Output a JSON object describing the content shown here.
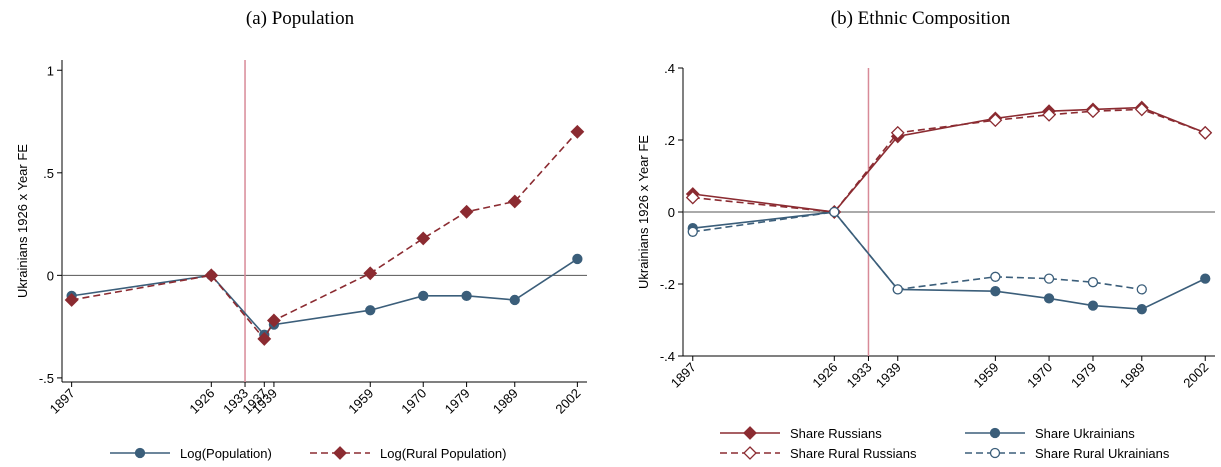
{
  "panels": [
    {
      "title": "(a) Population",
      "chart_data": {
        "type": "line",
        "ylabel": "Ukrainians 1926 x Year FE",
        "xlabel": "",
        "x_ticks": [
          1897,
          1926,
          1933,
          1937,
          1939,
          1959,
          1970,
          1979,
          1989,
          2002
        ],
        "xlim": [
          1895,
          2004
        ],
        "y_ticks": [
          -0.5,
          0,
          0.5,
          1
        ],
        "y_tick_labels": [
          "-.5",
          "0",
          ".5",
          "1"
        ],
        "ylim": [
          -0.52,
          1.05
        ],
        "reference_vline_x": 1933,
        "reference_hline_y": 0,
        "grid": false,
        "legend_position": "bottom",
        "series": [
          {
            "name": "Log(Population)",
            "style": "solid",
            "marker": "circle",
            "filled": true,
            "x": [
              1897,
              1926,
              1937,
              1939,
              1959,
              1970,
              1979,
              1989,
              2002
            ],
            "y": [
              -0.1,
              0.0,
              -0.29,
              -0.24,
              -0.17,
              -0.1,
              -0.1,
              -0.12,
              0.08
            ]
          },
          {
            "name": "Log(Rural Population)",
            "style": "dashed",
            "marker": "diamond",
            "filled": true,
            "x": [
              1897,
              1926,
              1937,
              1939,
              1959,
              1970,
              1979,
              1989,
              2002
            ],
            "y": [
              -0.12,
              0.0,
              -0.31,
              -0.22,
              0.01,
              0.18,
              0.31,
              0.36,
              0.7
            ]
          }
        ]
      }
    },
    {
      "title": "(b) Ethnic Composition",
      "chart_data": {
        "type": "line",
        "ylabel": "Ukrainians 1926 x Year FE",
        "xlabel": "",
        "x_ticks": [
          1897,
          1926,
          1933,
          1939,
          1959,
          1970,
          1979,
          1989,
          2002
        ],
        "xlim": [
          1895,
          2004
        ],
        "y_ticks": [
          -0.4,
          -0.2,
          0,
          0.2,
          0.4
        ],
        "y_tick_labels": [
          "-.4",
          "-.2",
          "0",
          ".2",
          ".4"
        ],
        "ylim": [
          -0.4,
          0.4
        ],
        "reference_vline_x": 1933,
        "reference_hline_y": 0,
        "grid": false,
        "legend_position": "bottom",
        "series": [
          {
            "name": "Share Russians",
            "style": "solid",
            "marker": "diamond",
            "filled": true,
            "x": [
              1897,
              1926,
              1939,
              1959,
              1970,
              1979,
              1989,
              2002
            ],
            "y": [
              0.05,
              0.0,
              0.21,
              0.26,
              0.28,
              0.285,
              0.29,
              0.22
            ]
          },
          {
            "name": "Share Ukrainians",
            "style": "solid",
            "marker": "circle",
            "filled": true,
            "x": [
              1897,
              1926,
              1939,
              1959,
              1970,
              1979,
              1989,
              2002
            ],
            "y": [
              -0.045,
              0.0,
              -0.215,
              -0.22,
              -0.24,
              -0.26,
              -0.27,
              -0.185
            ]
          },
          {
            "name": "Share Rural Russians",
            "style": "dashed",
            "marker": "diamond",
            "filled": false,
            "x": [
              1897,
              1926,
              1939,
              1959,
              1970,
              1979,
              1989,
              2002
            ],
            "y": [
              0.04,
              0.0,
              0.22,
              0.255,
              0.27,
              0.28,
              0.285,
              0.22
            ]
          },
          {
            "name": "Share Rural Ukrainians",
            "style": "dashed",
            "marker": "circle",
            "filled": false,
            "x": [
              1897,
              1926,
              1939,
              1959,
              1970,
              1979,
              1989
            ],
            "y": [
              -0.055,
              0.0,
              -0.215,
              -0.18,
              -0.185,
              -0.195,
              -0.215
            ]
          }
        ]
      }
    }
  ],
  "colors": {
    "blue": "#3b5e7a",
    "red": "#8b2b31",
    "vline": "#d88a98",
    "axis": "#000000"
  }
}
